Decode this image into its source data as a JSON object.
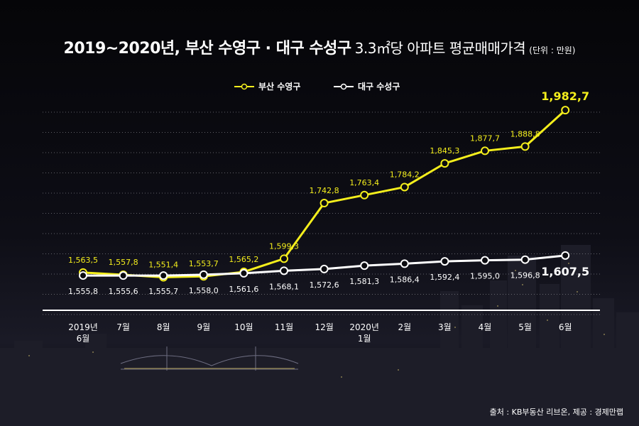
{
  "header": {
    "title_bold": "2019~2020년, 부산 수영구 · 대구 수성구",
    "title_normal": "3.3㎡당 아파트 평균매매가격",
    "unit": "(단위 : 만원)"
  },
  "footer": {
    "source": "출처 : KB부동산 리브온, 제공 : 경제만랩"
  },
  "colors": {
    "busan": "#f4ee1c",
    "daegu": "#ffffff",
    "background": "#0b0b10",
    "grid": "#9a9aa0"
  },
  "chart_data": {
    "type": "line",
    "categories": [
      "2019년\n6월",
      "7월",
      "8월",
      "9월",
      "10월",
      "11월",
      "12월",
      "2020년\n1월",
      "2월",
      "3월",
      "4월",
      "5월",
      "6월"
    ],
    "series": [
      {
        "name": "부산 수영구",
        "color": "#f4ee1c",
        "values": [
          1563.5,
          1557.8,
          1551.4,
          1553.7,
          1565.2,
          1599.3,
          1742.8,
          1763.4,
          1784.2,
          1845.3,
          1877.7,
          1888.8,
          1982.7
        ],
        "labels": [
          "1,563,5",
          "1,557,8",
          "1,551,4",
          "1,553,7",
          "1,565,2",
          "1,599,3",
          "1,742,8",
          "1,763,4",
          "1,784,2",
          "1,845,3",
          "1,877,7",
          "1,888,8",
          "1,982,7"
        ]
      },
      {
        "name": "대구 수성구",
        "color": "#ffffff",
        "values": [
          1555.8,
          1555.6,
          1555.7,
          1558.0,
          1561.6,
          1568.1,
          1572.6,
          1581.3,
          1586.4,
          1592.4,
          1595.0,
          1596.8,
          1607.5
        ],
        "labels": [
          "1,555,8",
          "1,555,6",
          "1,555,7",
          "1,558,0",
          "1,561,6",
          "1,568,1",
          "1,572,6",
          "1,581,3",
          "1,586,4",
          "1,592,4",
          "1,595,0",
          "1,596,8",
          "1,607,5"
        ]
      }
    ],
    "legend_position": "top-center",
    "grid": true
  }
}
